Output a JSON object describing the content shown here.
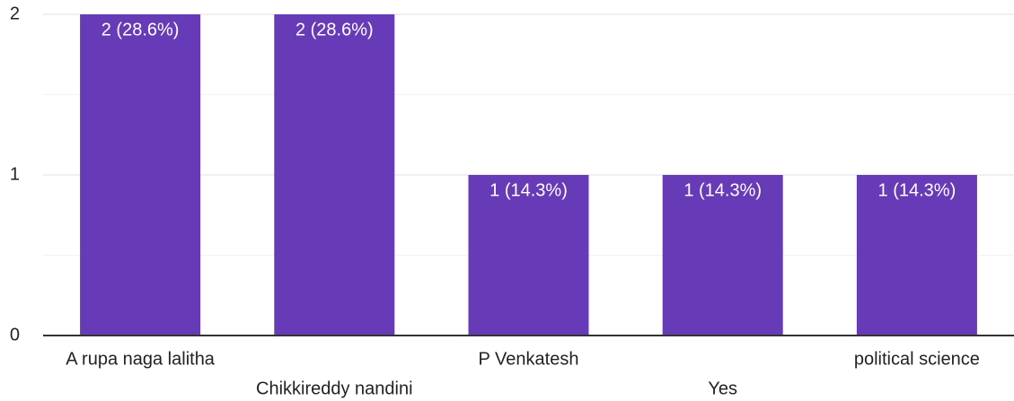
{
  "chart_data": {
    "type": "bar",
    "categories": [
      "A rupa naga lalitha",
      "Chikkireddy nandini",
      "P Venkatesh",
      "Yes",
      "political science"
    ],
    "values": [
      2,
      2,
      1,
      1,
      1
    ],
    "value_labels": [
      "2 (28.6%)",
      "2 (28.6%)",
      "1 (14.3%)",
      "1 (14.3%)",
      "1 (14.3%)"
    ],
    "color": "#673ab7",
    "ylim": [
      0,
      2
    ],
    "yticks": [
      0,
      1,
      2
    ],
    "minor_yticks": [
      0.5,
      1.5
    ],
    "grid": true
  }
}
